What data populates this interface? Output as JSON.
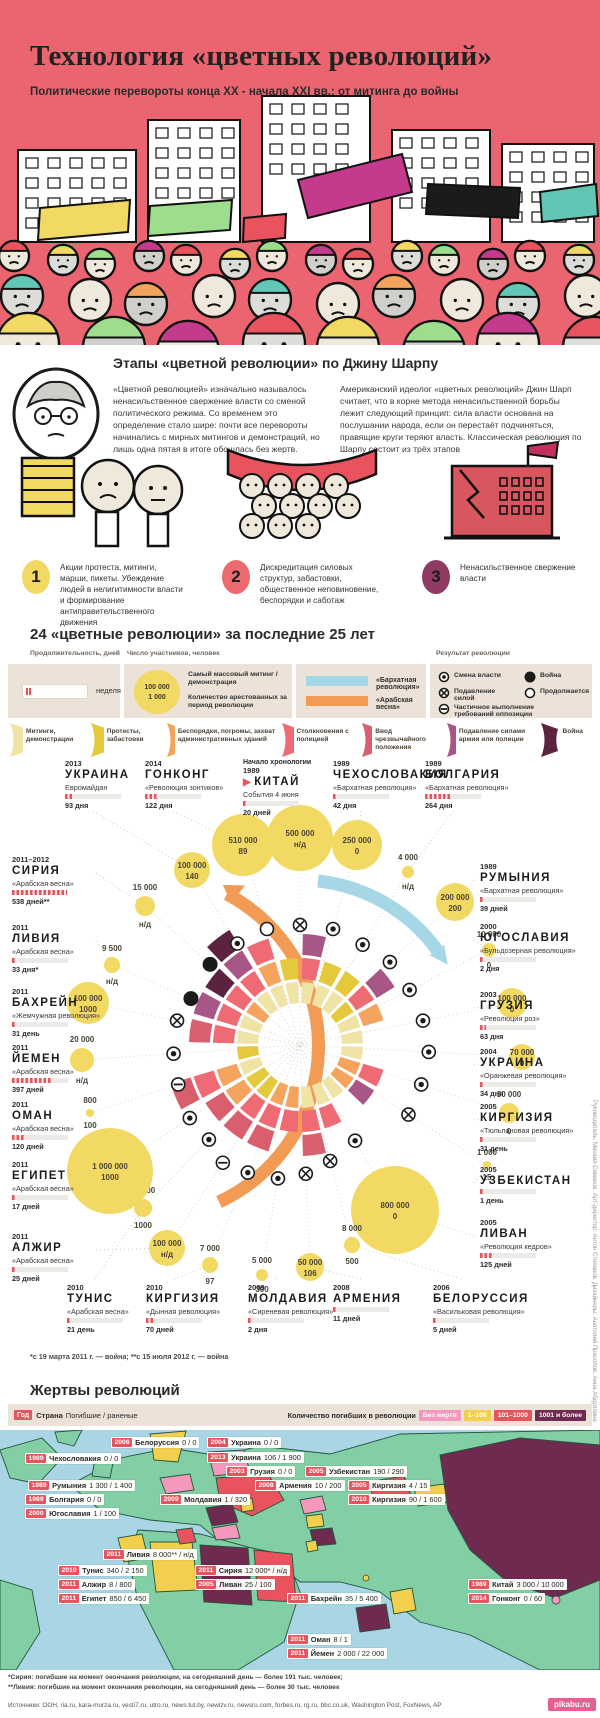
{
  "header": {
    "title": "Технология «цветных революций»",
    "subtitle": "Политические перевороты конца XX - начала XXI вв.: от митинга до войны"
  },
  "sharp": {
    "heading": "Этапы «цветной революции» по Джину Шарпу",
    "para_left": "«Цветной революцией» изначально называлось ненасильственное свержение власти со сменой политического режима. Со временем это определение стало шире: почти все перевороты начинались с мирных митингов и демонстраций, но лишь одна пятая в итоге обошлась без жертв.",
    "para_right": "Американский идеолог «цветных революций» Джин Шарп считает, что в корне метода ненасильственной борьбы лежит следующий принцип: сила власти основана на послушании народа, если он перестаёт подчиняться, правящие круги теряют власть. Классическая революция по Шарпу состоит из трёх этапов",
    "steps": [
      {
        "num": "1",
        "color": "#f2d963",
        "text": "Акции протеста, митинги, марши, пикеты. Убеждение людей в нелигитимности власти и формирование антиправительственного движения"
      },
      {
        "num": "2",
        "color": "#ed6a70",
        "text": "Дискредитация силовых структур, забастовки, общественное неповиновение, беспорядки и саботаж"
      },
      {
        "num": "3",
        "color": "#8e3a62",
        "text": "Ненасильственное свержение власти"
      }
    ]
  },
  "chart_data": [
    {
      "type": "radial-timeline",
      "title": "24 «цветные революции» за последние 25 лет",
      "legend": {
        "duration_label": "Продолжительность, дней",
        "duration_unit": "неделя",
        "participants_label": "Число участников, человек",
        "bubble_top": "100 000",
        "bubble_top_desc": "Самый массовый митинг / демонстрация",
        "bubble_bottom": "1 000",
        "bubble_bottom_desc": "Количество арестованных за период революции",
        "velvet_label": "«Бархатная революция»",
        "arab_label": "«Арабская весна»",
        "velvet_color": "#a6d7e6",
        "arab_color": "#f19b55",
        "result_label": "Результат революции",
        "results": [
          {
            "k": "change",
            "label": "Смена власти"
          },
          {
            "k": "force",
            "label": "Подавление силой"
          },
          {
            "k": "partial",
            "label": "Частичное выполнение требований оппозиции"
          },
          {
            "k": "war",
            "label": "Война"
          },
          {
            "k": "ongoing",
            "label": "Продолжается"
          }
        ]
      },
      "categories": [
        {
          "k": "m",
          "color": "#f0e3a6",
          "label": "Митинги, демонстрации"
        },
        {
          "k": "p",
          "color": "#e5c93d",
          "label": "Протесты, забастовки"
        },
        {
          "k": "r",
          "color": "#f4a45c",
          "label": "Беспорядки, погромы, захват административных зданий"
        },
        {
          "k": "c",
          "color": "#ee6b74",
          "label": "Столкновения с полицией"
        },
        {
          "k": "e",
          "color": "#d95f6e",
          "label": "Ввод чрезвычайного положения"
        },
        {
          "k": "a",
          "color": "#a85685",
          "label": "Подавление силами армии или полиции"
        },
        {
          "k": "w",
          "color": "#5c2340",
          "label": "Война"
        }
      ],
      "chronology_label": "Начало хронологии",
      "footnote": "*с 19 марта 2011 г. — война; **с 15 июля 2012 г. — война",
      "series": [
        {
          "id": "china",
          "year": "1989",
          "name": "КИТАЙ",
          "slogan": "События 4 июня",
          "duration": "20 дней",
          "days": 20,
          "participants": "500 000",
          "arrested": "н/д",
          "result": "force",
          "phases": [
            "m",
            "c",
            "a"
          ],
          "start": true
        },
        {
          "id": "czech",
          "year": "1989",
          "name": "ЧЕХОСЛОВАКИЯ",
          "slogan": "«Бархатная революция»",
          "duration": "42 дня",
          "days": 42,
          "participants": "250 000",
          "arrested": "0",
          "result": "change",
          "phases": [
            "m",
            "p"
          ]
        },
        {
          "id": "bulgaria",
          "year": "1989",
          "name": "БОЛГАРИЯ",
          "slogan": "«Бархатная революция»",
          "duration": "264 дня",
          "days": 264,
          "participants": "4 000",
          "arrested": "н/д",
          "result": "change",
          "phases": [
            "m",
            "p"
          ]
        },
        {
          "id": "romania",
          "year": "1989",
          "name": "РУМЫНИЯ",
          "slogan": "«Бархатная революция»",
          "duration": "39 дней",
          "days": 39,
          "participants": "200 000",
          "arrested": "200",
          "result": "change",
          "phases": [
            "p",
            "c",
            "a"
          ]
        },
        {
          "id": "yugoslavia",
          "year": "2000",
          "name": "ЮГОСЛАВИЯ",
          "slogan": "«Бульдозерная революция»",
          "duration": "2 дня",
          "days": 2,
          "participants": "10 000",
          "arrested": "0",
          "result": "change",
          "phases": [
            "m",
            "r"
          ]
        },
        {
          "id": "georgia",
          "year": "2003",
          "name": "ГРУЗИЯ",
          "slogan": "«Революция роз»",
          "duration": "63 дня",
          "days": 63,
          "participants": "100 000",
          "arrested": "0",
          "result": "change",
          "phases": [
            "m"
          ]
        },
        {
          "id": "ukraine04",
          "year": "2004",
          "name": "УКРАИНА",
          "slogan": "«Оранжевая революция»",
          "duration": "34 дня",
          "days": 34,
          "participants": "70 000",
          "arrested": "0",
          "result": "change",
          "phases": [
            "m"
          ]
        },
        {
          "id": "kyrgyz05",
          "year": "2005",
          "name": "КИРГИЗИЯ",
          "slogan": "«Тюльпановая революция»",
          "duration": "31 день",
          "days": 31,
          "participants": "30 000",
          "arrested": "0",
          "result": "change",
          "phases": [
            "r",
            "c"
          ]
        },
        {
          "id": "uzbek",
          "year": "2005",
          "name": "УЗБЕКИСТАН",
          "slogan": "",
          "duration": "1 день",
          "days": 1,
          "participants": "1 000",
          "arrested": "15",
          "result": "force",
          "phases": [
            "r",
            "a"
          ]
        },
        {
          "id": "lebanon",
          "year": "2005",
          "name": "ЛИВАН",
          "slogan": "«Революция кедров»",
          "duration": "125 дней",
          "days": 125,
          "participants": "800 000",
          "arrested": "0",
          "result": "change",
          "phases": [
            "m"
          ]
        },
        {
          "id": "belarus",
          "year": "2006",
          "name": "БЕЛОРУССИЯ",
          "slogan": "«Васильковая революция»",
          "duration": "5 дней",
          "days": 5,
          "participants": "8 000",
          "arrested": "500",
          "result": "force",
          "phases": [
            "m",
            "c"
          ]
        },
        {
          "id": "armenia",
          "year": "2008",
          "name": "АРМЕНИЯ",
          "slogan": "",
          "duration": "11 дней",
          "days": 11,
          "participants": "50 000",
          "arrested": "106",
          "result": "force",
          "phases": [
            "m",
            "c",
            "e"
          ]
        },
        {
          "id": "moldova",
          "year": "2009",
          "name": "МОЛДАВИЯ",
          "slogan": "«Сиреневая революция»",
          "duration": "2 дня",
          "days": 2,
          "participants": "5 000",
          "arrested": "300",
          "result": "change",
          "phases": [
            "r",
            "c"
          ]
        },
        {
          "id": "kyrgyz10",
          "year": "2010",
          "name": "КИРГИЗИЯ",
          "slogan": "«Дынная революция»",
          "duration": "70 дней",
          "days": 70,
          "participants": "7 000",
          "arrested": "97",
          "result": "change",
          "phases": [
            "r",
            "c",
            "e"
          ]
        },
        {
          "id": "tunisia",
          "year": "2010",
          "name": "ТУНИС",
          "slogan": "«Арабская весна»",
          "duration": "21 день",
          "days": 21,
          "participants": "10 000",
          "arrested": "1000",
          "result": "change",
          "phases": [
            "p",
            "c",
            "e"
          ]
        },
        {
          "id": "algeria",
          "year": "2011",
          "name": "АЛЖИР",
          "slogan": "«Арабская весна»",
          "duration": "25 дней",
          "days": 25,
          "participants": "100 000",
          "arrested": "н/д",
          "result": "partial",
          "phases": [
            "p",
            "r",
            "e"
          ]
        },
        {
          "id": "egypt",
          "year": "2011",
          "name": "ЕГИПЕТ",
          "slogan": "«Арабская весна»",
          "duration": "17 дней",
          "days": 17,
          "participants": "1 000 000",
          "arrested": "1000",
          "result": "change",
          "phases": [
            "m",
            "r",
            "c",
            "e"
          ]
        },
        {
          "id": "oman",
          "year": "2011",
          "name": "ОМАН",
          "slogan": "«Арабская весна»",
          "duration": "120 дней",
          "days": 120,
          "participants": "800",
          "arrested": "100",
          "result": "partial",
          "phases": [
            "p"
          ]
        },
        {
          "id": "yemen",
          "year": "2011",
          "name": "ЙЕМЕН",
          "slogan": "«Арабская весна»",
          "duration": "397 дней",
          "days": 397,
          "participants": "20 000",
          "arrested": "н/д",
          "result": "change",
          "phases": [
            "m",
            "c",
            "e"
          ]
        },
        {
          "id": "bahrain",
          "year": "2011",
          "name": "БАХРЕЙН",
          "slogan": "«Жемчужная революция»",
          "duration": "31 день",
          "days": 31,
          "participants": "100 000",
          "arrested": "1000",
          "result": "force",
          "phases": [
            "m",
            "c",
            "a"
          ]
        },
        {
          "id": "libya",
          "year": "2011",
          "name": "ЛИВИЯ",
          "slogan": "«Арабская весна»",
          "duration": "33 дня*",
          "days": 33,
          "participants": "9 500",
          "arrested": "н/д",
          "result": "war",
          "phases": [
            "r",
            "c",
            "w"
          ]
        },
        {
          "id": "syria",
          "year": "2011–2012",
          "name": "СИРИЯ",
          "slogan": "«Арабская весна»",
          "duration": "538 дней**",
          "days": 538,
          "participants": "15 000",
          "arrested": "н/д",
          "result": "war",
          "phases": [
            "m",
            "c",
            "a",
            "w"
          ]
        },
        {
          "id": "ukraine13",
          "year": "2013",
          "name": "УКРАИНА",
          "slogan": "Евромайдан",
          "duration": "93 дня",
          "days": 93,
          "participants": "100 000",
          "arrested": "140",
          "result": "change",
          "phases": [
            "m",
            "r",
            "c"
          ]
        },
        {
          "id": "hongkong",
          "year": "2014",
          "name": "ГОНКОНГ",
          "slogan": "«Революция зонтиков»",
          "duration": "122 дня",
          "days": 122,
          "participants": "510 000",
          "arrested": "89",
          "result": "ongoing",
          "phases": [
            "m",
            "p"
          ]
        }
      ]
    },
    {
      "type": "map",
      "title": "Жертвы революций",
      "legend": {
        "year_label": "Год",
        "country_label": "Страна",
        "value_label": "Погибшие / раненые",
        "right_label": "Количество погибших в революции",
        "buckets": [
          {
            "k": "none",
            "label": "Без жертв",
            "color": "#f598bd"
          },
          {
            "k": "low",
            "label": "1–100",
            "color": "#f3cf4e"
          },
          {
            "k": "mid",
            "label": "101–1000",
            "color": "#e8535e"
          },
          {
            "k": "high",
            "label": "1001 и более",
            "color": "#6e2a4f"
          }
        ]
      },
      "points": [
        {
          "id": "czech",
          "year": "1989",
          "name": "Чехословакия",
          "value": "0 / 0",
          "bucket": "none"
        },
        {
          "id": "belarus",
          "year": "2006",
          "name": "Белоруссия",
          "value": "0 / 0",
          "bucket": "none"
        },
        {
          "id": "ukraine04",
          "year": "2004",
          "name": "Украина",
          "value": "0 / 0",
          "bucket": "none"
        },
        {
          "id": "ukraine13",
          "year": "2013",
          "name": "Украина",
          "value": "106 / 1 900",
          "bucket": "mid"
        },
        {
          "id": "georgia",
          "year": "2003",
          "name": "Грузия",
          "value": "0 / 0",
          "bucket": "none"
        },
        {
          "id": "uzbek",
          "year": "2005",
          "name": "Узбекистан",
          "value": "190 / 290",
          "bucket": "mid"
        },
        {
          "id": "armenia",
          "year": "2008",
          "name": "Армения",
          "value": "10 / 200",
          "bucket": "low"
        },
        {
          "id": "romania",
          "year": "1989",
          "name": "Румыния",
          "value": "1 300 / 1 400",
          "bucket": "high"
        },
        {
          "id": "kyrgyz05",
          "year": "2005",
          "name": "Киргизия",
          "value": "4 / 15",
          "bucket": "low"
        },
        {
          "id": "bulgaria",
          "year": "1989",
          "name": "Болгария",
          "value": "0 / 0",
          "bucket": "none"
        },
        {
          "id": "moldova",
          "year": "2009",
          "name": "Молдавия",
          "value": "1 / 320",
          "bucket": "low"
        },
        {
          "id": "kyrgyz10",
          "year": "2010",
          "name": "Киргизия",
          "value": "90 / 1 600",
          "bucket": "low"
        },
        {
          "id": "yugoslavia",
          "year": "2000",
          "name": "Югославия",
          "value": "1 / 100",
          "bucket": "low"
        },
        {
          "id": "libya",
          "year": "2011",
          "name": "Ливия",
          "value": "8 000** / н/д",
          "bucket": "high"
        },
        {
          "id": "tunisia",
          "year": "2010",
          "name": "Тунис",
          "value": "340 / 2 150",
          "bucket": "mid"
        },
        {
          "id": "syria",
          "year": "2011",
          "name": "Сирия",
          "value": "12 000* / н/д",
          "bucket": "high"
        },
        {
          "id": "algeria",
          "year": "2011",
          "name": "Алжир",
          "value": "8 / 800",
          "bucket": "low"
        },
        {
          "id": "lebanon",
          "year": "2005",
          "name": "Ливан",
          "value": "25 / 100",
          "bucket": "low"
        },
        {
          "id": "egypt",
          "year": "2011",
          "name": "Египет",
          "value": "850 / 6 450",
          "bucket": "mid"
        },
        {
          "id": "bahrain",
          "year": "2011",
          "name": "Бахрейн",
          "value": "35 / 5 400",
          "bucket": "low"
        },
        {
          "id": "china",
          "year": "1989",
          "name": "Китай",
          "value": "3 000 / 10 000",
          "bucket": "high"
        },
        {
          "id": "hongkong",
          "year": "2014",
          "name": "Гонконг",
          "value": "0 / 60",
          "bucket": "none"
        },
        {
          "id": "oman",
          "year": "2011",
          "name": "Оман",
          "value": "8 / 1",
          "bucket": "low"
        },
        {
          "id": "yemen",
          "year": "2011",
          "name": "Йемен",
          "value": "2 000 / 22 000",
          "bucket": "high"
        }
      ],
      "footnotes": [
        "*Сирия: погибшие на момент окончания революции, на сегодняшний день — более 191 тыс. человек;",
        "**Ливия: погибшие на момент окончания революции, на сегодняшний день — более 30 тыс. человек"
      ]
    }
  ],
  "footer": {
    "sources": "Источники: ООН, ria.ru, kara-murza.ru, vesti7.ru, utro.ru, news.tut.by, newizv.ru, newsru.com, forbes.ru, rg.ru, bbc.co.uk, Washington Post, FoxNews, AP",
    "brand": "pikabu.ru",
    "credits": "Руководитель: Михаил Симаков. Арт-директор: Антон Степанов. Дизайнеры: Анатолий Прасолов, Анна Абдуллина"
  }
}
